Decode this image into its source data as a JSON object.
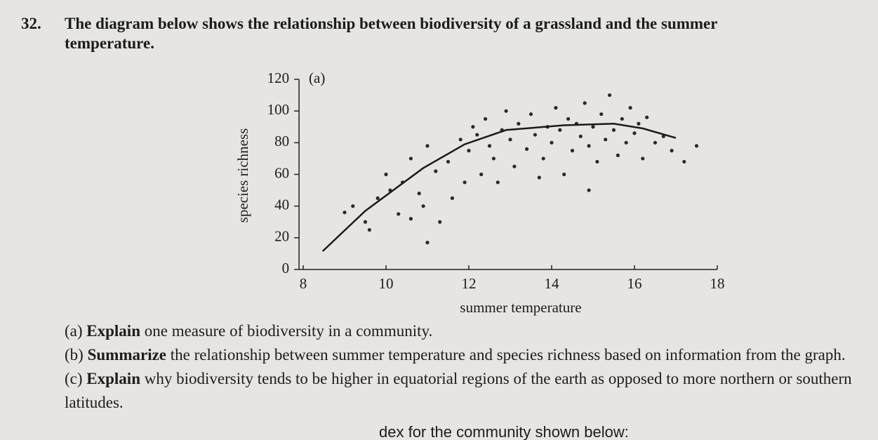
{
  "question": {
    "number": "32.",
    "text": "The diagram below shows the relationship between biodiversity of a grassland and the summer temperature."
  },
  "chart_data": {
    "type": "scatter",
    "annotation": "(a)",
    "x_label": "summer temperature",
    "y_label": "species richness",
    "xlim": [
      7.9,
      18
    ],
    "ylim": [
      0,
      120
    ],
    "xticks": [
      8,
      10,
      12,
      14,
      16,
      18
    ],
    "yticks": [
      0,
      20,
      40,
      60,
      80,
      100,
      120
    ],
    "color": "#2a2a2a",
    "x": [
      9.2,
      9.5,
      9.8,
      9.6,
      10.1,
      10.3,
      10.0,
      10.4,
      10.6,
      10.8,
      10.9,
      11.0,
      11.2,
      11.3,
      11.5,
      11.6,
      11.8,
      11.9,
      12.0,
      12.1,
      12.2,
      12.3,
      12.4,
      12.5,
      12.6,
      12.8,
      12.9,
      13.0,
      13.1,
      13.2,
      13.4,
      13.5,
      13.6,
      13.8,
      13.9,
      14.0,
      14.1,
      14.2,
      14.3,
      14.4,
      14.5,
      14.6,
      14.7,
      14.8,
      14.9,
      15.0,
      15.1,
      15.2,
      15.3,
      15.4,
      15.5,
      15.6,
      15.7,
      15.8,
      15.9,
      16.0,
      16.1,
      16.2,
      16.3,
      16.5,
      16.7,
      16.9,
      17.2,
      17.5,
      11.0,
      10.6,
      9.0,
      12.7,
      13.7,
      14.9
    ],
    "y": [
      40,
      30,
      45,
      25,
      50,
      35,
      60,
      55,
      70,
      48,
      40,
      78,
      62,
      30,
      68,
      45,
      82,
      55,
      75,
      90,
      85,
      60,
      95,
      78,
      70,
      88,
      100,
      82,
      65,
      92,
      76,
      98,
      85,
      70,
      90,
      80,
      102,
      88,
      60,
      95,
      75,
      92,
      84,
      105,
      78,
      90,
      68,
      98,
      82,
      110,
      88,
      72,
      95,
      80,
      102,
      86,
      92,
      70,
      96,
      80,
      84,
      75,
      68,
      78,
      17,
      32,
      36,
      55,
      58,
      50
    ],
    "trend": {
      "x": [
        8.47,
        9.5,
        10.9,
        11.9,
        12.9,
        14.3,
        15.5,
        16.2,
        17.0
      ],
      "y": [
        11.5,
        37,
        64,
        79,
        88,
        91,
        92,
        89,
        83
      ]
    }
  },
  "parts": [
    {
      "label": "(a)",
      "verb": "Explain",
      "text": "one measure of biodiversity in a community."
    },
    {
      "label": "(b)",
      "verb": "Summarize",
      "text": "the relationship between summer temperature and species richness based on information from the graph."
    },
    {
      "label": "(c)",
      "verb": "Explain",
      "text": "why biodiversity tends to be higher in equatorial regions of the earth as opposed to more northern or southern latitudes."
    }
  ],
  "footer_fragment": "dex for the community shown below:"
}
